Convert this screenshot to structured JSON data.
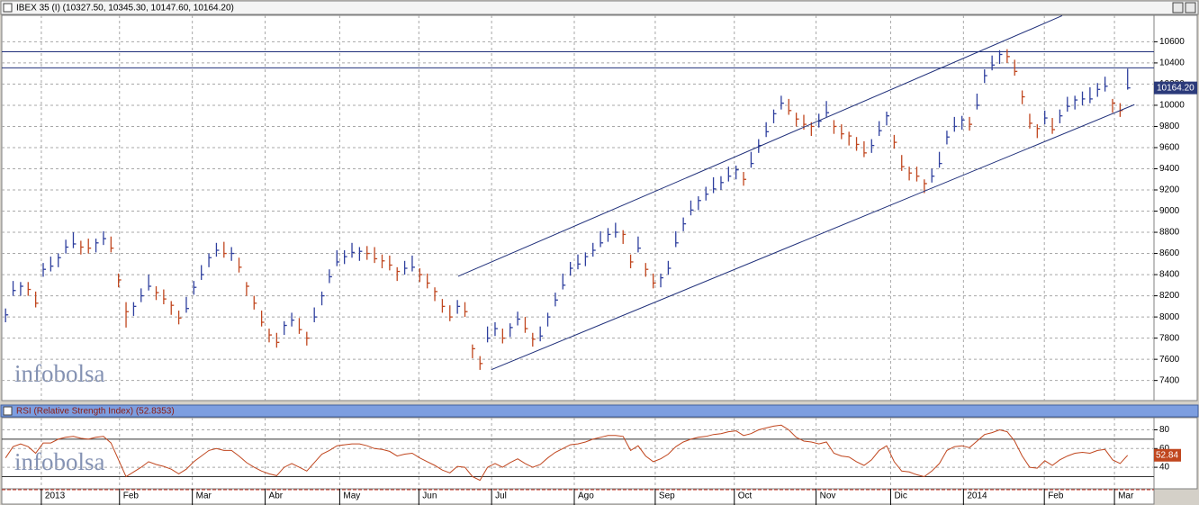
{
  "chart_data": [
    {
      "type": "ohlc",
      "title": "IBEX 35 (I) (10327.50, 10345.30, 10147.60, 10164.20)",
      "watermark": "infobolsa",
      "up_color": "#2e3f9e",
      "down_color": "#c0461e",
      "line_color": "#1f2f7a",
      "grid": true,
      "xlim": [
        -0.5,
        152.5
      ],
      "ylim": [
        7210,
        10850
      ],
      "yticks": [
        7400,
        7600,
        7800,
        8000,
        8200,
        8400,
        8600,
        8800,
        9000,
        9200,
        9400,
        9600,
        9800,
        10000,
        10200,
        10400,
        10600
      ],
      "xticks": [
        {
          "value": 4.75,
          "label": "2013"
        },
        {
          "value": 15.13,
          "label": "Feb"
        },
        {
          "value": 24.8,
          "label": "Mar"
        },
        {
          "value": 34.47,
          "label": "Abr"
        },
        {
          "value": 44.37,
          "label": "May"
        },
        {
          "value": 54.88,
          "label": "Jun"
        },
        {
          "value": 64.54,
          "label": "Jul"
        },
        {
          "value": 75.52,
          "label": "Ago"
        },
        {
          "value": 86.27,
          "label": "Sep"
        },
        {
          "value": 96.77,
          "label": "Oct"
        },
        {
          "value": 107.63,
          "label": "Nov"
        },
        {
          "value": 117.53,
          "label": "Dic"
        },
        {
          "value": 127.2,
          "label": "2014"
        },
        {
          "value": 137.94,
          "label": "Feb"
        },
        {
          "value": 147.25,
          "label": "Mar"
        }
      ],
      "high": [
        8080,
        8340,
        8330,
        8330,
        8240,
        8510,
        8570,
        8600,
        8730,
        8800,
        8720,
        8740,
        8740,
        8810,
        8760,
        8410,
        8140,
        8140,
        8270,
        8400,
        8290,
        8260,
        8150,
        8060,
        8190,
        8340,
        8490,
        8600,
        8700,
        8710,
        8660,
        8560,
        8330,
        8200,
        8060,
        7890,
        7850,
        7960,
        8040,
        7990,
        7860,
        8090,
        8240,
        8450,
        8630,
        8630,
        8700,
        8660,
        8670,
        8660,
        8590,
        8580,
        8470,
        8530,
        8580,
        8460,
        8410,
        8280,
        8170,
        8110,
        8160,
        8140,
        7740,
        7630,
        7910,
        7950,
        7890,
        7940,
        8050,
        8000,
        7850,
        7910,
        8040,
        8230,
        8410,
        8520,
        8590,
        8610,
        8700,
        8810,
        8840,
        8890,
        8820,
        8590,
        8760,
        8510,
        8410,
        8410,
        8530,
        8810,
        8940,
        9100,
        9140,
        9230,
        9320,
        9330,
        9420,
        9430,
        9370,
        9560,
        9680,
        9840,
        9960,
        10090,
        10060,
        9930,
        9910,
        9840,
        9920,
        10040,
        9860,
        9820,
        9750,
        9700,
        9660,
        9680,
        9850,
        9940,
        9720,
        9530,
        9420,
        9420,
        9300,
        9400,
        9560,
        9760,
        9890,
        9900,
        9890,
        10110,
        10340,
        10470,
        10520,
        10530,
        10430,
        10140,
        9920,
        9820,
        9950,
        9880,
        9960,
        10080,
        10090,
        10130,
        10170,
        10210,
        10270,
        10060,
        10020,
        10345.3
      ],
      "low": [
        7950,
        8200,
        8200,
        8200,
        8090,
        8380,
        8430,
        8470,
        8600,
        8650,
        8590,
        8600,
        8610,
        8680,
        8610,
        8280,
        7900,
        8010,
        8140,
        8250,
        8160,
        8120,
        8020,
        7930,
        8040,
        8210,
        8350,
        8470,
        8570,
        8560,
        8530,
        8420,
        8200,
        8070,
        7910,
        7760,
        7710,
        7830,
        7910,
        7840,
        7730,
        7950,
        8110,
        8320,
        8480,
        8500,
        8560,
        8530,
        8540,
        8510,
        8460,
        8440,
        8340,
        8400,
        8430,
        8330,
        8270,
        8150,
        8040,
        7960,
        8030,
        8000,
        7610,
        7500,
        7760,
        7820,
        7750,
        7810,
        7920,
        7850,
        7720,
        7770,
        7910,
        8100,
        8260,
        8390,
        8450,
        8480,
        8570,
        8660,
        8710,
        8750,
        8690,
        8460,
        8610,
        8380,
        8270,
        8280,
        8400,
        8660,
        8810,
        8960,
        9010,
        9100,
        9170,
        9200,
        9280,
        9300,
        9240,
        9410,
        9550,
        9700,
        9830,
        9960,
        9910,
        9800,
        9770,
        9710,
        9790,
        9890,
        9730,
        9680,
        9620,
        9570,
        9510,
        9550,
        9710,
        9810,
        9590,
        9380,
        9290,
        9280,
        9170,
        9270,
        9410,
        9630,
        9750,
        9770,
        9760,
        9960,
        10210,
        10330,
        10390,
        10400,
        10280,
        10010,
        9780,
        9690,
        9820,
        9730,
        9830,
        9940,
        9960,
        10000,
        10020,
        10080,
        10130,
        9930,
        9890,
        10147.6
      ],
      "close": [
        8020,
        8250,
        8290,
        8260,
        8130,
        8450,
        8480,
        8560,
        8660,
        8690,
        8660,
        8650,
        8700,
        8740,
        8650,
        8350,
        8050,
        8100,
        8200,
        8290,
        8230,
        8170,
        8110,
        7990,
        8080,
        8280,
        8400,
        8560,
        8630,
        8600,
        8600,
        8470,
        8290,
        8130,
        7950,
        7830,
        7760,
        7920,
        7970,
        7880,
        7800,
        8000,
        8200,
        8380,
        8520,
        8570,
        8610,
        8620,
        8600,
        8550,
        8530,
        8490,
        8430,
        8460,
        8470,
        8400,
        8320,
        8240,
        8100,
        8000,
        8100,
        8050,
        7700,
        7560,
        7800,
        7890,
        7800,
        7900,
        7980,
        7890,
        7790,
        7820,
        8000,
        8160,
        8300,
        8460,
        8500,
        8570,
        8630,
        8700,
        8780,
        8800,
        8780,
        8520,
        8650,
        8450,
        8320,
        8370,
        8460,
        8700,
        8880,
        9010,
        9100,
        9160,
        9210,
        9270,
        9330,
        9390,
        9300,
        9450,
        9620,
        9750,
        9920,
        10020,
        9950,
        9870,
        9820,
        9800,
        9850,
        9930,
        9800,
        9730,
        9710,
        9630,
        9550,
        9620,
        9760,
        9900,
        9650,
        9420,
        9360,
        9330,
        9260,
        9330,
        9450,
        9700,
        9800,
        9860,
        9820,
        10000,
        10280,
        10380,
        10480,
        10460,
        10320,
        10080,
        9830,
        9780,
        9880,
        9770,
        9900,
        9990,
        10050,
        10060,
        10060,
        10150,
        10180,
        10020,
        9950,
        10164.2
      ],
      "last_label": "10164.20",
      "trend_lines": [
        {
          "x": [
            60.1,
            140.3
          ],
          "y": [
            8384,
            10846
          ]
        },
        {
          "x": [
            64.5,
            149.9
          ],
          "y": [
            7502,
            10006
          ]
        }
      ],
      "levels": [
        10506,
        10354
      ]
    },
    {
      "type": "line",
      "title": "RSI (Relative Strength Index) (52.8353)",
      "watermark": "infobolsa",
      "color": "#c0461e",
      "grid": true,
      "xlim": [
        -0.5,
        152.5
      ],
      "ylim": [
        17,
        93
      ],
      "yticks": [
        40,
        60,
        80
      ],
      "levels": [
        30,
        70
      ],
      "values": [
        50,
        62,
        65,
        62,
        55,
        66,
        66,
        70,
        72,
        73,
        71,
        70,
        72,
        73,
        66,
        48,
        30,
        35,
        40,
        46,
        43,
        41,
        38,
        33,
        38,
        46,
        52,
        58,
        60,
        58,
        58,
        52,
        45,
        40,
        36,
        33,
        31,
        40,
        44,
        40,
        36,
        45,
        54,
        58,
        63,
        64,
        65,
        65,
        63,
        60,
        59,
        57,
        52,
        54,
        55,
        50,
        46,
        42,
        37,
        34,
        41,
        40,
        30,
        26,
        40,
        44,
        40,
        45,
        49,
        44,
        40,
        43,
        50,
        56,
        60,
        64,
        65,
        67,
        70,
        72,
        74,
        74,
        73,
        58,
        63,
        52,
        46,
        49,
        54,
        62,
        67,
        70,
        72,
        73,
        75,
        76,
        78,
        79,
        74,
        76,
        80,
        82,
        84,
        85,
        80,
        72,
        68,
        67,
        65,
        67,
        55,
        52,
        51,
        46,
        42,
        48,
        58,
        63,
        46,
        36,
        35,
        32,
        30,
        36,
        44,
        58,
        62,
        63,
        61,
        68,
        75,
        77,
        80,
        78,
        68,
        52,
        40,
        39,
        47,
        42,
        48,
        52,
        55,
        56,
        55,
        58,
        59,
        48,
        44,
        52.8353
      ],
      "last_label": "52.84"
    }
  ]
}
